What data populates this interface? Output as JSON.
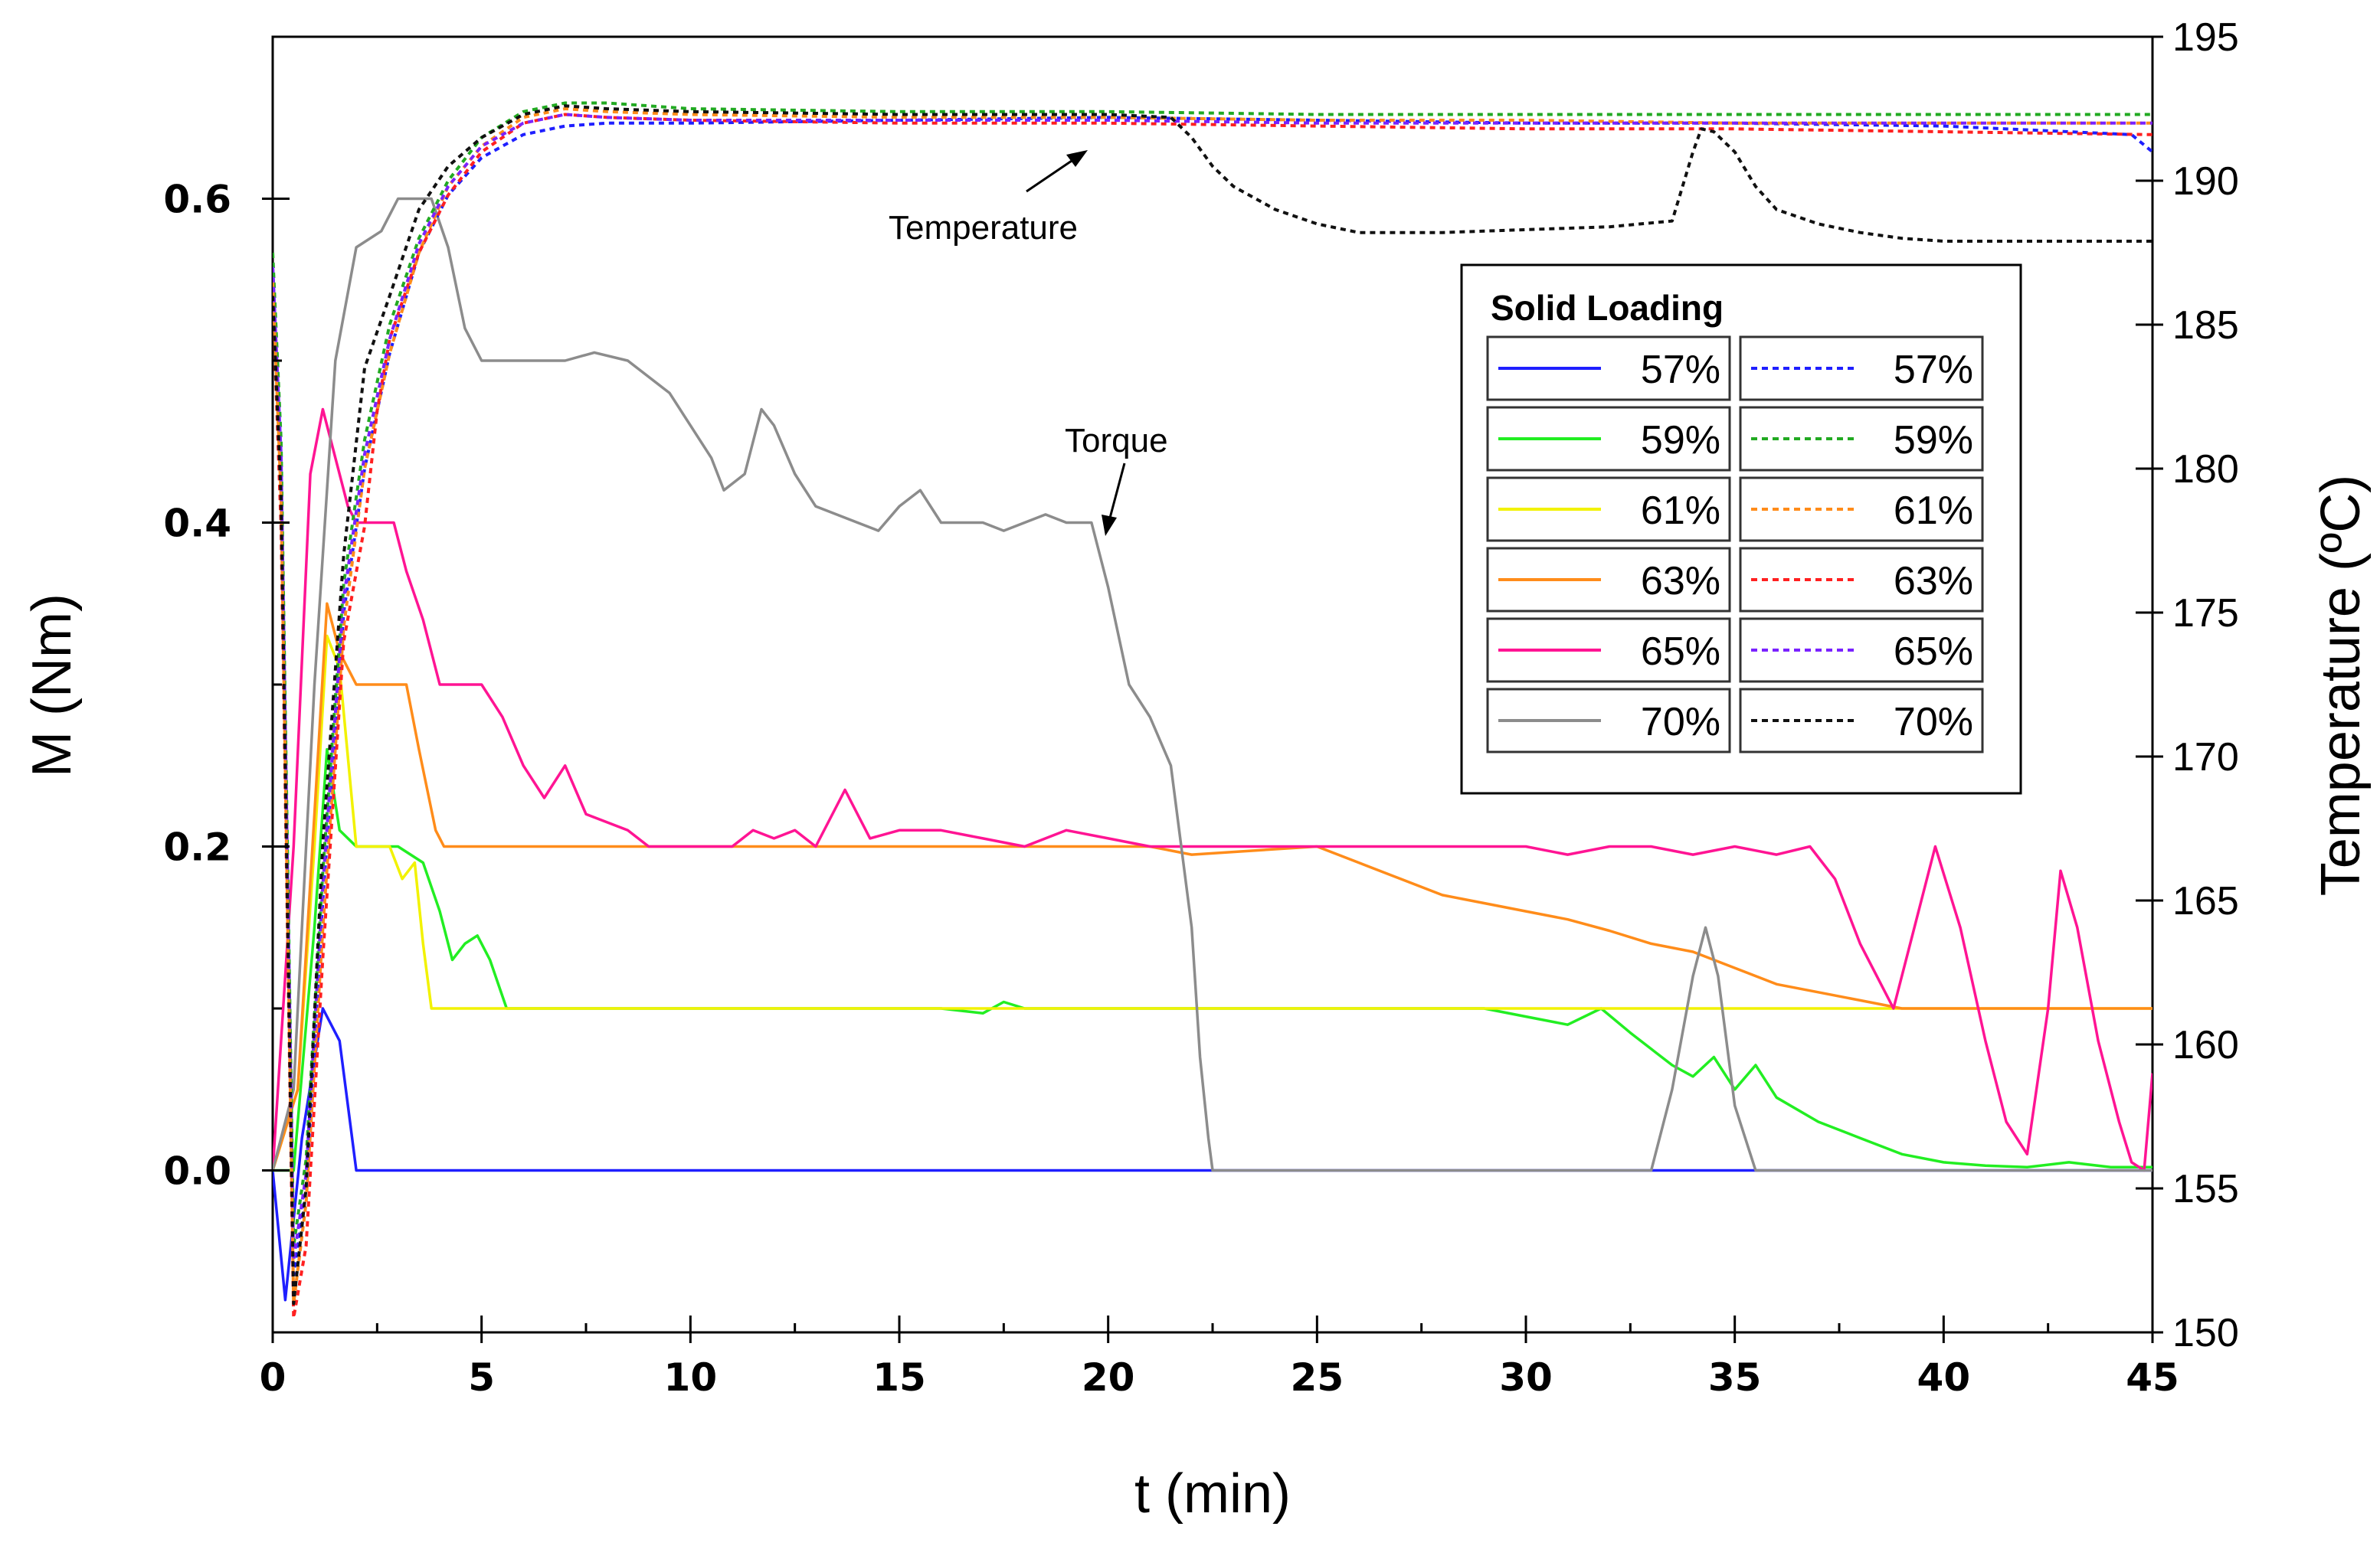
{
  "chart_data": {
    "type": "line",
    "title": "",
    "xlabel": "t (min)",
    "ylabel": "M (Nm)",
    "y2label": "Temperature (ºC)",
    "xlim": [
      0,
      45
    ],
    "ylim": [
      -0.1,
      0.7
    ],
    "y2lim": [
      150,
      195
    ],
    "x_ticks": [
      "0",
      "5",
      "10",
      "15",
      "20",
      "25",
      "30",
      "35",
      "40",
      "45"
    ],
    "y_ticks": [
      "0.0",
      "0.2",
      "0.4",
      "0.6"
    ],
    "y_tick_values": [
      0.0,
      0.2,
      0.4,
      0.6
    ],
    "y2_ticks": [
      "150",
      "155",
      "160",
      "165",
      "170",
      "175",
      "180",
      "185",
      "190",
      "195"
    ],
    "legend": {
      "title": "Solid Loading",
      "placement": "right-center",
      "entries": [
        {
          "label": "57%",
          "color": "#1f1fff",
          "style": "solid"
        },
        {
          "label": "57%",
          "color": "#1f1fff",
          "style": "dotted"
        },
        {
          "label": "59%",
          "color": "#22ee22",
          "style": "solid"
        },
        {
          "label": "59%",
          "color": "#22aa22",
          "style": "dotted"
        },
        {
          "label": "61%",
          "color": "#f2f200",
          "style": "solid"
        },
        {
          "label": "61%",
          "color": "#ff8c1a",
          "style": "dotted"
        },
        {
          "label": "63%",
          "color": "#ff8c1a",
          "style": "solid"
        },
        {
          "label": "63%",
          "color": "#ff2020",
          "style": "dotted"
        },
        {
          "label": "65%",
          "color": "#ff1493",
          "style": "solid"
        },
        {
          "label": "65%",
          "color": "#7a22ff",
          "style": "dotted"
        },
        {
          "label": "70%",
          "color": "#8c8c8c",
          "style": "solid"
        },
        {
          "label": "70%",
          "color": "#111111",
          "style": "dotted"
        }
      ]
    },
    "annotations": {
      "temperature": "Temperature",
      "torque": "Torque"
    },
    "torque_series": [
      {
        "name": "57%",
        "color": "#1f1fff",
        "x": [
          0,
          0.3,
          0.7,
          1.2,
          1.6,
          2.0,
          2.1,
          33,
          35.5,
          45
        ],
        "y": [
          0,
          -0.08,
          0.02,
          0.1,
          0.08,
          0.0,
          0,
          0,
          0,
          0
        ]
      },
      {
        "name": "59%",
        "color": "#22ee22",
        "x": [
          0,
          0.5,
          1.0,
          1.3,
          1.6,
          2.0,
          3.0,
          3.6,
          4.0,
          4.3,
          4.6,
          4.9,
          5.2,
          5.6,
          16.0,
          17.0,
          17.5,
          18.0,
          29.0,
          30.0,
          31.0,
          31.8,
          32.5,
          33.0,
          33.5,
          34.0,
          34.5,
          35.0,
          35.5,
          36.0,
          37.0,
          38.0,
          39.0,
          40.0,
          41.0,
          42.0,
          43.0,
          44.0,
          45.0
        ],
        "y": [
          0,
          0.0,
          0.15,
          0.26,
          0.21,
          0.2,
          0.2,
          0.19,
          0.16,
          0.13,
          0.14,
          0.145,
          0.13,
          0.1,
          0.1,
          0.097,
          0.104,
          0.1,
          0.1,
          0.095,
          0.09,
          0.1,
          0.085,
          0.075,
          0.065,
          0.058,
          0.07,
          0.05,
          0.065,
          0.045,
          0.03,
          0.02,
          0.01,
          0.005,
          0.003,
          0.002,
          0.005,
          0.002,
          0.002
        ]
      },
      {
        "name": "61%",
        "color": "#f2f200",
        "x": [
          0,
          0.6,
          1.0,
          1.3,
          1.6,
          2.0,
          2.8,
          3.1,
          3.4,
          3.6,
          3.8,
          3.9,
          45
        ],
        "y": [
          0,
          0.05,
          0.2,
          0.33,
          0.31,
          0.2,
          0.2,
          0.18,
          0.19,
          0.14,
          0.1,
          0.1,
          0.1
        ]
      },
      {
        "name": "63%",
        "color": "#ff8c1a",
        "x": [
          0,
          0.6,
          1.0,
          1.3,
          1.6,
          2.0,
          3.2,
          3.5,
          3.9,
          4.1,
          21.0,
          22.0,
          25.0,
          26.0,
          27.0,
          28.0,
          29.0,
          30.0,
          31.0,
          32.0,
          33.0,
          34.0,
          35.0,
          36.0,
          37.0,
          38.0,
          39.0,
          40.0,
          41.0,
          45.0
        ],
        "y": [
          0,
          0.05,
          0.22,
          0.35,
          0.32,
          0.3,
          0.3,
          0.26,
          0.21,
          0.2,
          0.2,
          0.195,
          0.2,
          0.19,
          0.18,
          0.17,
          0.165,
          0.16,
          0.155,
          0.148,
          0.14,
          0.135,
          0.125,
          0.115,
          0.11,
          0.105,
          0.1,
          0.1,
          0.1,
          0.1
        ]
      },
      {
        "name": "65%",
        "color": "#ff1493",
        "x": [
          0,
          0.5,
          0.9,
          1.2,
          1.5,
          1.8,
          2.0,
          2.2,
          2.9,
          3.2,
          3.6,
          4.0,
          5.0,
          5.5,
          6.0,
          6.5,
          7.0,
          7.5,
          8.5,
          9.0,
          9.5,
          11.0,
          11.5,
          12.0,
          12.5,
          13.0,
          13.7,
          14.3,
          15.0,
          16.0,
          17.0,
          18.0,
          19.0,
          20.0,
          21.0,
          22.0,
          24.0,
          26.0,
          28.0,
          30.0,
          31.0,
          32.0,
          33.0,
          34.0,
          35.0,
          36.0,
          36.8,
          37.4,
          38.0,
          38.8,
          39.2,
          39.8,
          40.4,
          41.0,
          41.5,
          42.0,
          42.5,
          42.8,
          43.2,
          43.7,
          44.2,
          44.5,
          44.8,
          45.0
        ],
        "y": [
          0,
          0.2,
          0.43,
          0.47,
          0.44,
          0.41,
          0.4,
          0.4,
          0.4,
          0.37,
          0.34,
          0.3,
          0.3,
          0.28,
          0.25,
          0.23,
          0.25,
          0.22,
          0.21,
          0.2,
          0.2,
          0.2,
          0.21,
          0.205,
          0.21,
          0.2,
          0.235,
          0.205,
          0.21,
          0.21,
          0.205,
          0.2,
          0.21,
          0.205,
          0.2,
          0.2,
          0.2,
          0.2,
          0.2,
          0.2,
          0.195,
          0.2,
          0.2,
          0.195,
          0.2,
          0.195,
          0.2,
          0.18,
          0.14,
          0.1,
          0.14,
          0.2,
          0.15,
          0.08,
          0.03,
          0.01,
          0.1,
          0.185,
          0.15,
          0.08,
          0.03,
          0.005,
          0.0,
          0.06
        ]
      },
      {
        "name": "70%",
        "color": "#8c8c8c",
        "x": [
          0,
          0.5,
          1.0,
          1.5,
          2.0,
          2.6,
          3.0,
          3.4,
          3.8,
          4.2,
          4.6,
          5.0,
          6.0,
          7.0,
          7.7,
          8.5,
          9.5,
          10.0,
          10.5,
          10.8,
          11.3,
          11.7,
          12.0,
          12.5,
          13.0,
          14.0,
          14.5,
          15.0,
          15.5,
          16.0,
          17.0,
          17.5,
          18.0,
          18.5,
          19.0,
          19.6,
          20.0,
          20.5,
          21.0,
          21.5,
          22.0,
          22.2,
          22.4,
          22.5,
          33.0,
          33.5,
          34.0,
          34.3,
          34.6,
          35.0,
          35.5,
          45.0
        ],
        "y": [
          0,
          0.05,
          0.3,
          0.5,
          0.57,
          0.58,
          0.6,
          0.6,
          0.6,
          0.57,
          0.52,
          0.5,
          0.5,
          0.5,
          0.505,
          0.5,
          0.48,
          0.46,
          0.44,
          0.42,
          0.43,
          0.47,
          0.46,
          0.43,
          0.41,
          0.4,
          0.395,
          0.41,
          0.42,
          0.4,
          0.4,
          0.395,
          0.4,
          0.405,
          0.4,
          0.4,
          0.36,
          0.3,
          0.28,
          0.25,
          0.15,
          0.07,
          0.02,
          0.0,
          0.0,
          0.05,
          0.12,
          0.15,
          0.12,
          0.04,
          0.0,
          0.0
        ]
      }
    ],
    "temperature_series": [
      {
        "name": "57%",
        "color": "#1f1fff",
        "x": [
          0,
          0.2,
          0.5,
          0.8,
          1.2,
          1.7,
          2.2,
          2.8,
          3.5,
          4.2,
          5.0,
          6.0,
          7.0,
          8.0,
          10,
          15,
          20,
          25,
          30,
          35,
          40,
          44.5,
          45
        ],
        "y": [
          187,
          180,
          152,
          155,
          165,
          175,
          180,
          184,
          187.5,
          189.5,
          190.8,
          191.6,
          191.9,
          192.0,
          192.0,
          192.1,
          192.2,
          192.1,
          192.0,
          192.0,
          191.9,
          191.6,
          191.0
        ]
      },
      {
        "name": "59%",
        "color": "#22aa22",
        "x": [
          0,
          0.2,
          0.5,
          0.8,
          1.2,
          1.7,
          2.2,
          2.8,
          3.5,
          4.2,
          5.0,
          6.0,
          7.0,
          8.0,
          10,
          15,
          20,
          25,
          30,
          35,
          40,
          45
        ],
        "y": [
          187.5,
          181,
          153,
          156,
          166,
          176,
          181,
          185,
          188,
          190,
          191.5,
          192.4,
          192.7,
          192.7,
          192.5,
          192.4,
          192.4,
          192.3,
          192.3,
          192.3,
          192.3,
          192.3
        ]
      },
      {
        "name": "61%",
        "color": "#ff8c1a",
        "x": [
          0,
          0.2,
          0.5,
          0.8,
          1.2,
          1.7,
          2.2,
          2.8,
          3.5,
          4.2,
          5.0,
          6.0,
          7.0,
          8.0,
          10,
          15,
          20,
          25,
          30,
          35,
          40,
          45
        ],
        "y": [
          186.5,
          179,
          151,
          154.5,
          164,
          174.5,
          180,
          184,
          187.5,
          189.8,
          191.2,
          192.2,
          192.5,
          192.4,
          192.3,
          192.2,
          192.2,
          192.1,
          192.1,
          192.0,
          192.0,
          192.0
        ]
      },
      {
        "name": "63%",
        "color": "#ff2020",
        "x": [
          0,
          0.2,
          0.5,
          0.8,
          1.2,
          1.7,
          2.2,
          2.5,
          2.8,
          3.5,
          4.2,
          5.0,
          6.0,
          7.0,
          8.0,
          10,
          15,
          20,
          25,
          30,
          35,
          40,
          45
        ],
        "y": [
          186,
          178,
          150.5,
          153,
          163,
          174,
          178,
          182,
          184.5,
          187.5,
          189.5,
          191,
          192,
          192.3,
          192.2,
          192.1,
          192.0,
          192.0,
          191.9,
          191.8,
          191.8,
          191.7,
          191.6
        ]
      },
      {
        "name": "65%",
        "color": "#7a22ff",
        "x": [
          0,
          0.2,
          0.5,
          0.8,
          1.2,
          1.7,
          2.2,
          2.8,
          3.5,
          4.2,
          5.0,
          6.0,
          7.0,
          8.0,
          10,
          15,
          20,
          25,
          30,
          35,
          40,
          45
        ],
        "y": [
          187,
          180.5,
          152.5,
          155.5,
          165.5,
          175.5,
          180.5,
          184.5,
          187.8,
          189.8,
          191.2,
          192.0,
          192.3,
          192.2,
          192.1,
          192.1,
          192.1,
          192.0,
          192.0,
          192.0,
          192.0,
          192.0
        ]
      },
      {
        "name": "70%",
        "color": "#111111",
        "x": [
          0,
          0.2,
          0.5,
          0.8,
          1.2,
          1.7,
          2.2,
          2.8,
          3.5,
          4.2,
          5.0,
          6.0,
          7.0,
          8.0,
          10,
          15,
          20,
          21.5,
          22.0,
          22.5,
          23.0,
          24.0,
          25.0,
          26.0,
          28.0,
          30.0,
          32.0,
          33.5,
          34.0,
          34.2,
          34.5,
          35.0,
          35.5,
          36.0,
          37.0,
          38.0,
          39.0,
          40.0,
          42.0,
          45.0
        ],
        "y": [
          186,
          179,
          151,
          155,
          167,
          177,
          183.5,
          186,
          189,
          190.5,
          191.5,
          192.3,
          192.6,
          192.5,
          192.4,
          192.3,
          192.3,
          192.2,
          191.5,
          190.5,
          189.8,
          189.0,
          188.5,
          188.2,
          188.2,
          188.3,
          188.4,
          188.6,
          191.0,
          191.8,
          191.7,
          191.0,
          189.8,
          189.0,
          188.5,
          188.2,
          188.0,
          187.9,
          187.9,
          187.9
        ]
      }
    ]
  }
}
